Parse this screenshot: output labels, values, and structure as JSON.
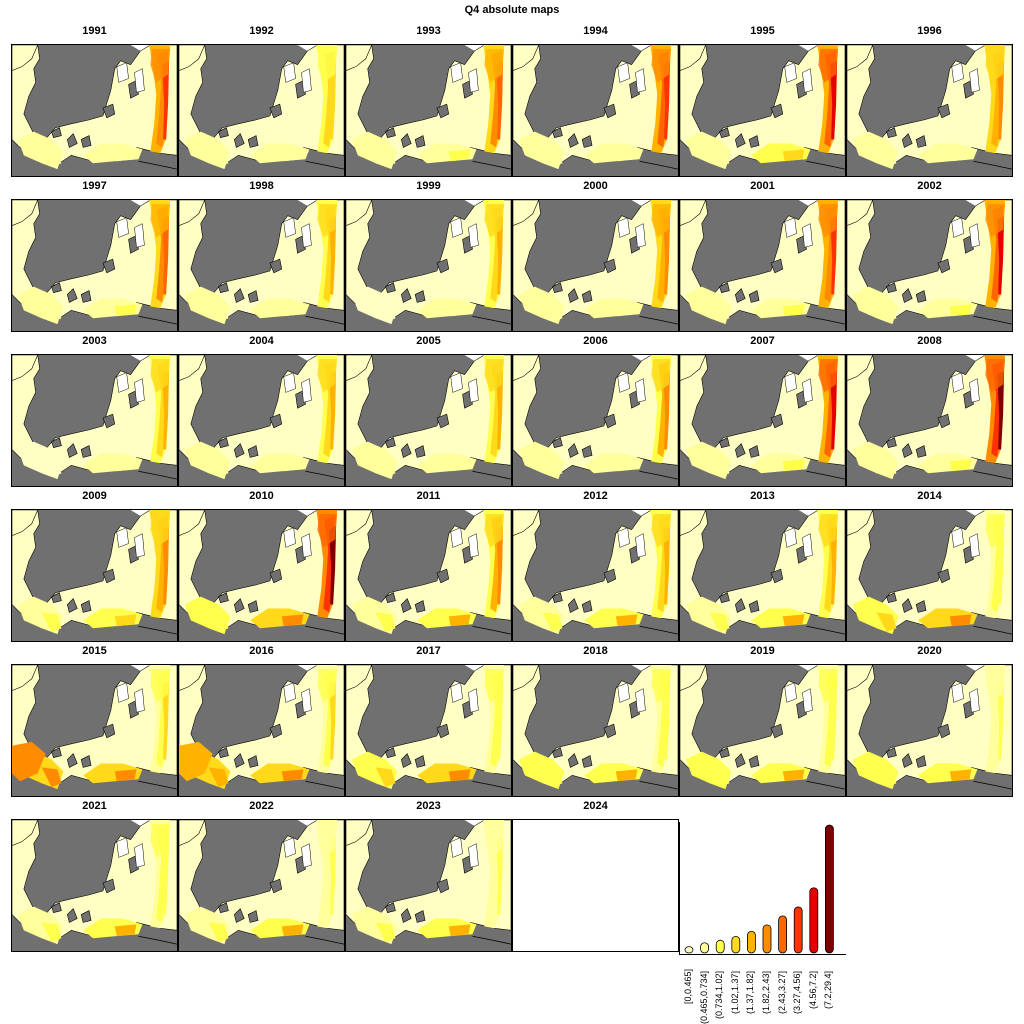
{
  "title": "Q4 absolute maps",
  "years": [
    "1991",
    "1992",
    "1993",
    "1994",
    "1995",
    "1996",
    "1997",
    "1998",
    "1999",
    "2000",
    "2001",
    "2002",
    "2003",
    "2004",
    "2005",
    "2006",
    "2007",
    "2008",
    "2009",
    "2010",
    "2011",
    "2012",
    "2013",
    "2014",
    "2015",
    "2016",
    "2017",
    "2018",
    "2019",
    "2020",
    "2021",
    "2022",
    "2023",
    "2024"
  ],
  "empty_years": [
    "2024"
  ],
  "colors": {
    "land": "#707070",
    "classes": [
      "#ffffc4",
      "#ffff9c",
      "#ffff4d",
      "#ffd91a",
      "#ffb300",
      "#ff8c00",
      "#ff6600",
      "#ff3300",
      "#e60000",
      "#800000"
    ]
  },
  "legend": {
    "labels": [
      "[0,0.465]",
      "(0.465,0.734]",
      "(0.734,1.02]",
      "(1.02,1.37]",
      "(1.37,1.82]",
      "(1.82,2.43]",
      "(2.43,3.27]",
      "(3.27,4.56]",
      "(4.56,7.2]",
      "(7.2,29.4]"
    ],
    "relative_heights": [
      0.05,
      0.08,
      0.1,
      0.13,
      0.17,
      0.22,
      0.29,
      0.36,
      0.51,
      1.0
    ]
  },
  "hotspots": {
    "1991": {
      "east": 0.75,
      "south": 0.15,
      "west": 0.1
    },
    "1992": {
      "east": 0.35,
      "south": 0.1,
      "west": 0.1
    },
    "1993": {
      "east": 0.7,
      "south": 0.2,
      "west": 0.1
    },
    "1994": {
      "east": 0.8,
      "south": 0.15,
      "west": 0.1
    },
    "1995": {
      "east": 0.9,
      "south": 0.3,
      "west": 0.15
    },
    "1996": {
      "east": 0.55,
      "south": 0.1,
      "west": 0.1
    },
    "1997": {
      "east": 0.65,
      "south": 0.2,
      "west": 0.15
    },
    "1998": {
      "east": 0.4,
      "south": 0.15,
      "west": 0.1
    },
    "1999": {
      "east": 0.4,
      "south": 0.1,
      "west": 0.05
    },
    "2000": {
      "east": 0.6,
      "south": 0.15,
      "west": 0.1
    },
    "2001": {
      "east": 0.75,
      "south": 0.2,
      "west": 0.1
    },
    "2002": {
      "east": 0.85,
      "south": 0.25,
      "west": 0.15
    },
    "2003": {
      "east": 0.4,
      "south": 0.1,
      "west": 0.05
    },
    "2004": {
      "east": 0.4,
      "south": 0.1,
      "west": 0.1
    },
    "2005": {
      "east": 0.45,
      "south": 0.15,
      "west": 0.1
    },
    "2006": {
      "east": 0.5,
      "south": 0.15,
      "west": 0.1
    },
    "2007": {
      "east": 0.9,
      "south": 0.2,
      "west": 0.1
    },
    "2008": {
      "east": 0.95,
      "south": 0.25,
      "west": 0.15
    },
    "2009": {
      "east": 0.55,
      "south": 0.35,
      "west": 0.2
    },
    "2010": {
      "east": 0.95,
      "south": 0.5,
      "west": 0.25
    },
    "2011": {
      "east": 0.5,
      "south": 0.45,
      "west": 0.2
    },
    "2012": {
      "east": 0.4,
      "south": 0.45,
      "west": 0.2
    },
    "2013": {
      "east": 0.45,
      "south": 0.45,
      "west": 0.2
    },
    "2014": {
      "east": 0.25,
      "south": 0.6,
      "west": 0.3
    },
    "2015": {
      "east": 0.3,
      "south": 0.6,
      "west": 0.55
    },
    "2016": {
      "east": 0.3,
      "south": 0.6,
      "west": 0.4
    },
    "2017": {
      "east": 0.25,
      "south": 0.5,
      "west": 0.3
    },
    "2018": {
      "east": 0.25,
      "south": 0.45,
      "west": 0.25
    },
    "2019": {
      "east": 0.25,
      "south": 0.4,
      "west": 0.25
    },
    "2020": {
      "east": 0.2,
      "south": 0.45,
      "west": 0.25
    },
    "2021": {
      "east": 0.25,
      "south": 0.45,
      "west": 0.15
    },
    "2022": {
      "east": 0.2,
      "south": 0.45,
      "west": 0.15
    },
    "2023": {
      "east": 0.2,
      "south": 0.45,
      "west": 0.15
    }
  }
}
